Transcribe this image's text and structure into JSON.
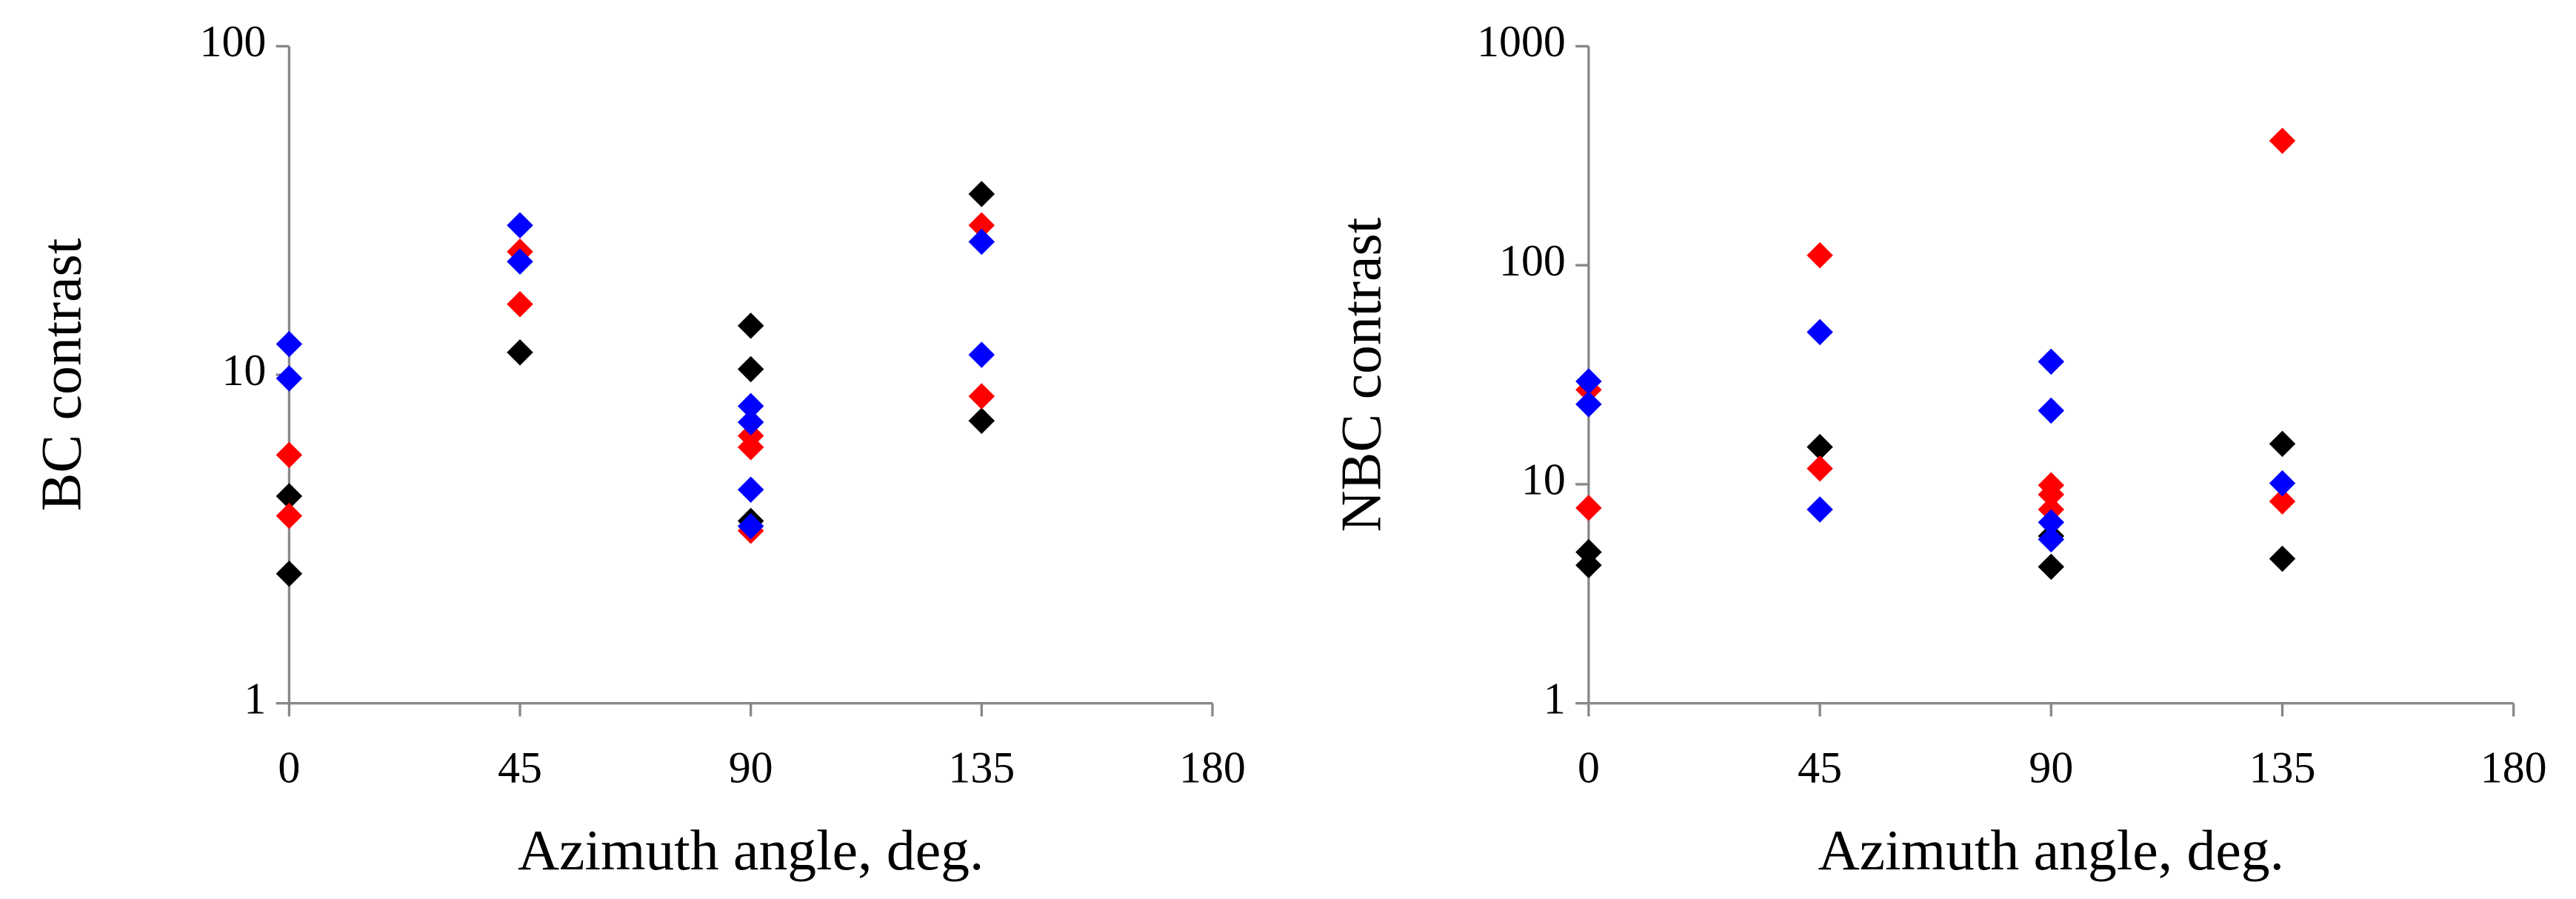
{
  "chart_data": [
    {
      "type": "scatter",
      "xlabel": "Azimuth angle, deg.",
      "ylabel": "BC contrast",
      "log_y": true,
      "xlim": [
        0,
        180
      ],
      "xticks": [
        0,
        45,
        90,
        135,
        180
      ],
      "ylim": [
        1,
        100
      ],
      "yticks": [
        1,
        10,
        100
      ],
      "series": [
        {
          "color": "#000000",
          "x": [
            0,
            0,
            45,
            90,
            90,
            90,
            135,
            135
          ],
          "values": [
            4.27,
            2.48,
            11.7,
            14.1,
            10.4,
            3.59,
            35.5,
            7.24
          ]
        },
        {
          "color": "#ff0000",
          "x": [
            0,
            0,
            45,
            45,
            90,
            90,
            90,
            135,
            135
          ],
          "values": [
            5.7,
            3.72,
            16.4,
            23.7,
            6.52,
            6.02,
            3.35,
            28.5,
            8.6
          ]
        },
        {
          "color": "#0000ff",
          "x": [
            0,
            0,
            45,
            45,
            90,
            90,
            90,
            90,
            135,
            135
          ],
          "values": [
            12.4,
            9.75,
            28.5,
            22.1,
            8.03,
            7.17,
            4.47,
            3.46,
            25.4,
            11.5
          ]
        }
      ]
    },
    {
      "type": "scatter",
      "xlabel": "Azimuth angle, deg.",
      "ylabel": "NBC contrast",
      "log_y": true,
      "xlim": [
        0,
        180
      ],
      "xticks": [
        0,
        45,
        90,
        135,
        180
      ],
      "ylim": [
        1,
        1000
      ],
      "yticks": [
        1,
        10,
        100,
        1000
      ],
      "series": [
        {
          "color": "#000000",
          "x": [
            0,
            0,
            45,
            90,
            90,
            135,
            135
          ],
          "values": [
            4.9,
            4.27,
            14.8,
            4.2,
            5.8,
            15.3,
            4.57
          ]
        },
        {
          "color": "#ff0000",
          "x": [
            0,
            0,
            45,
            45,
            90,
            90,
            90,
            135,
            135
          ],
          "values": [
            7.8,
            27,
            11.8,
            111,
            9.9,
            8.97,
            7.67,
            8.35,
            370
          ]
        },
        {
          "color": "#0000ff",
          "x": [
            0,
            0,
            45,
            45,
            90,
            90,
            90,
            90,
            135
          ],
          "values": [
            29.5,
            23.2,
            49.5,
            7.67,
            36.3,
            21.7,
            6.7,
            5.6,
            10.1
          ]
        }
      ]
    }
  ]
}
